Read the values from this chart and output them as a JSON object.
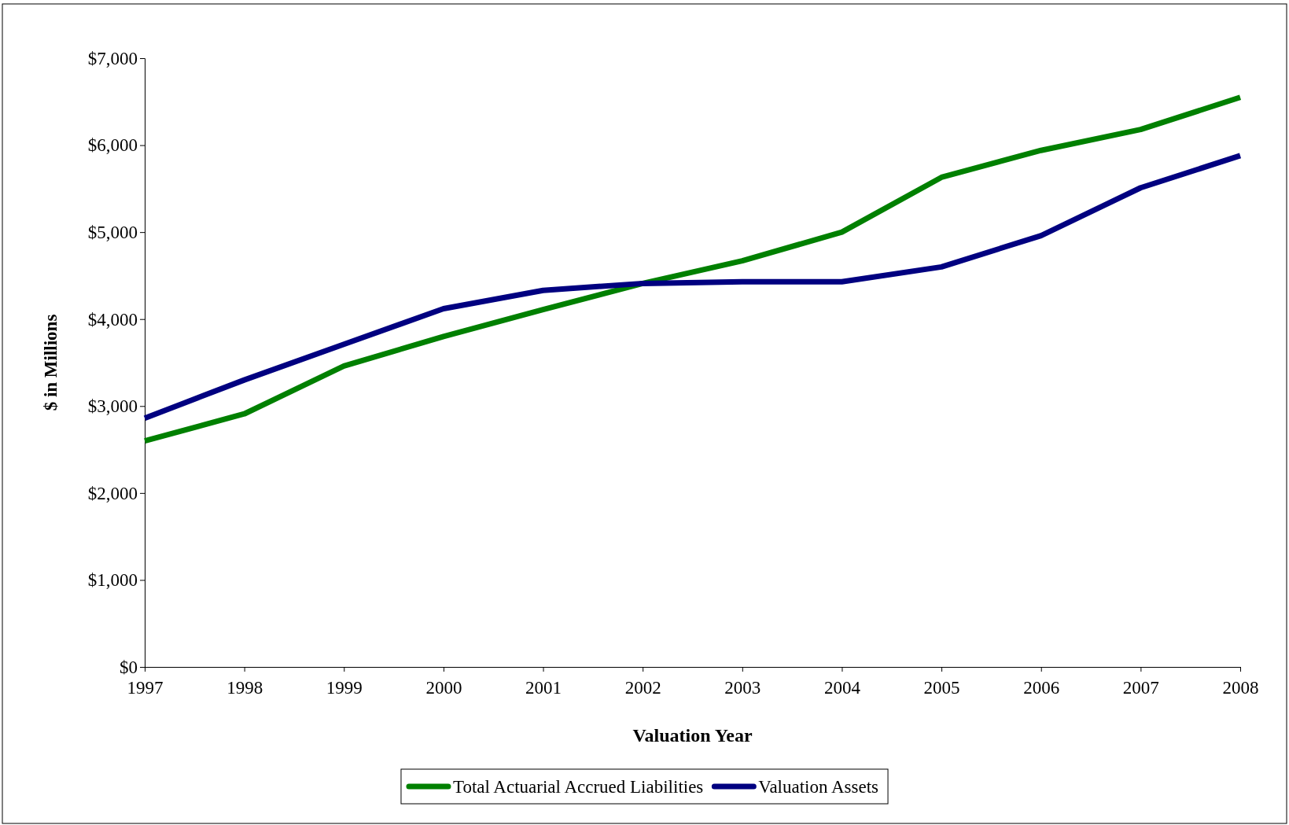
{
  "chart_data": {
    "type": "line",
    "xlabel": "Valuation Year",
    "ylabel": "$ in Millions",
    "x": [
      1997,
      1998,
      1999,
      2000,
      2001,
      2002,
      2003,
      2004,
      2005,
      2006,
      2007,
      2008
    ],
    "xlim": [
      1997,
      2008
    ],
    "xticks": [
      1997,
      1998,
      1999,
      2000,
      2001,
      2002,
      2003,
      2004,
      2005,
      2006,
      2007,
      2008
    ],
    "ylim": [
      0,
      7000
    ],
    "yticks": [
      {
        "value": 0,
        "label": "$0"
      },
      {
        "value": 1000,
        "label": "$1,000"
      },
      {
        "value": 2000,
        "label": "$2,000"
      },
      {
        "value": 3000,
        "label": "$3,000"
      },
      {
        "value": 4000,
        "label": "$4,000"
      },
      {
        "value": 5000,
        "label": "$5,000"
      },
      {
        "value": 6000,
        "label": "$6,000"
      },
      {
        "value": 7000,
        "label": "$7,000"
      }
    ],
    "legend": "bottom",
    "grid": false,
    "series": [
      {
        "name": "Total Actuarial Accrued Liabilities",
        "color": "#008000",
        "values": [
          2600,
          2910,
          3460,
          3800,
          4110,
          4410,
          4670,
          5000,
          5630,
          5940,
          6180,
          6550
        ]
      },
      {
        "name": "Valuation Assets",
        "color": "#000080",
        "values": [
          2860,
          3300,
          3710,
          4120,
          4330,
          4410,
          4430,
          4430,
          4600,
          4960,
          5510,
          5880
        ]
      }
    ]
  }
}
